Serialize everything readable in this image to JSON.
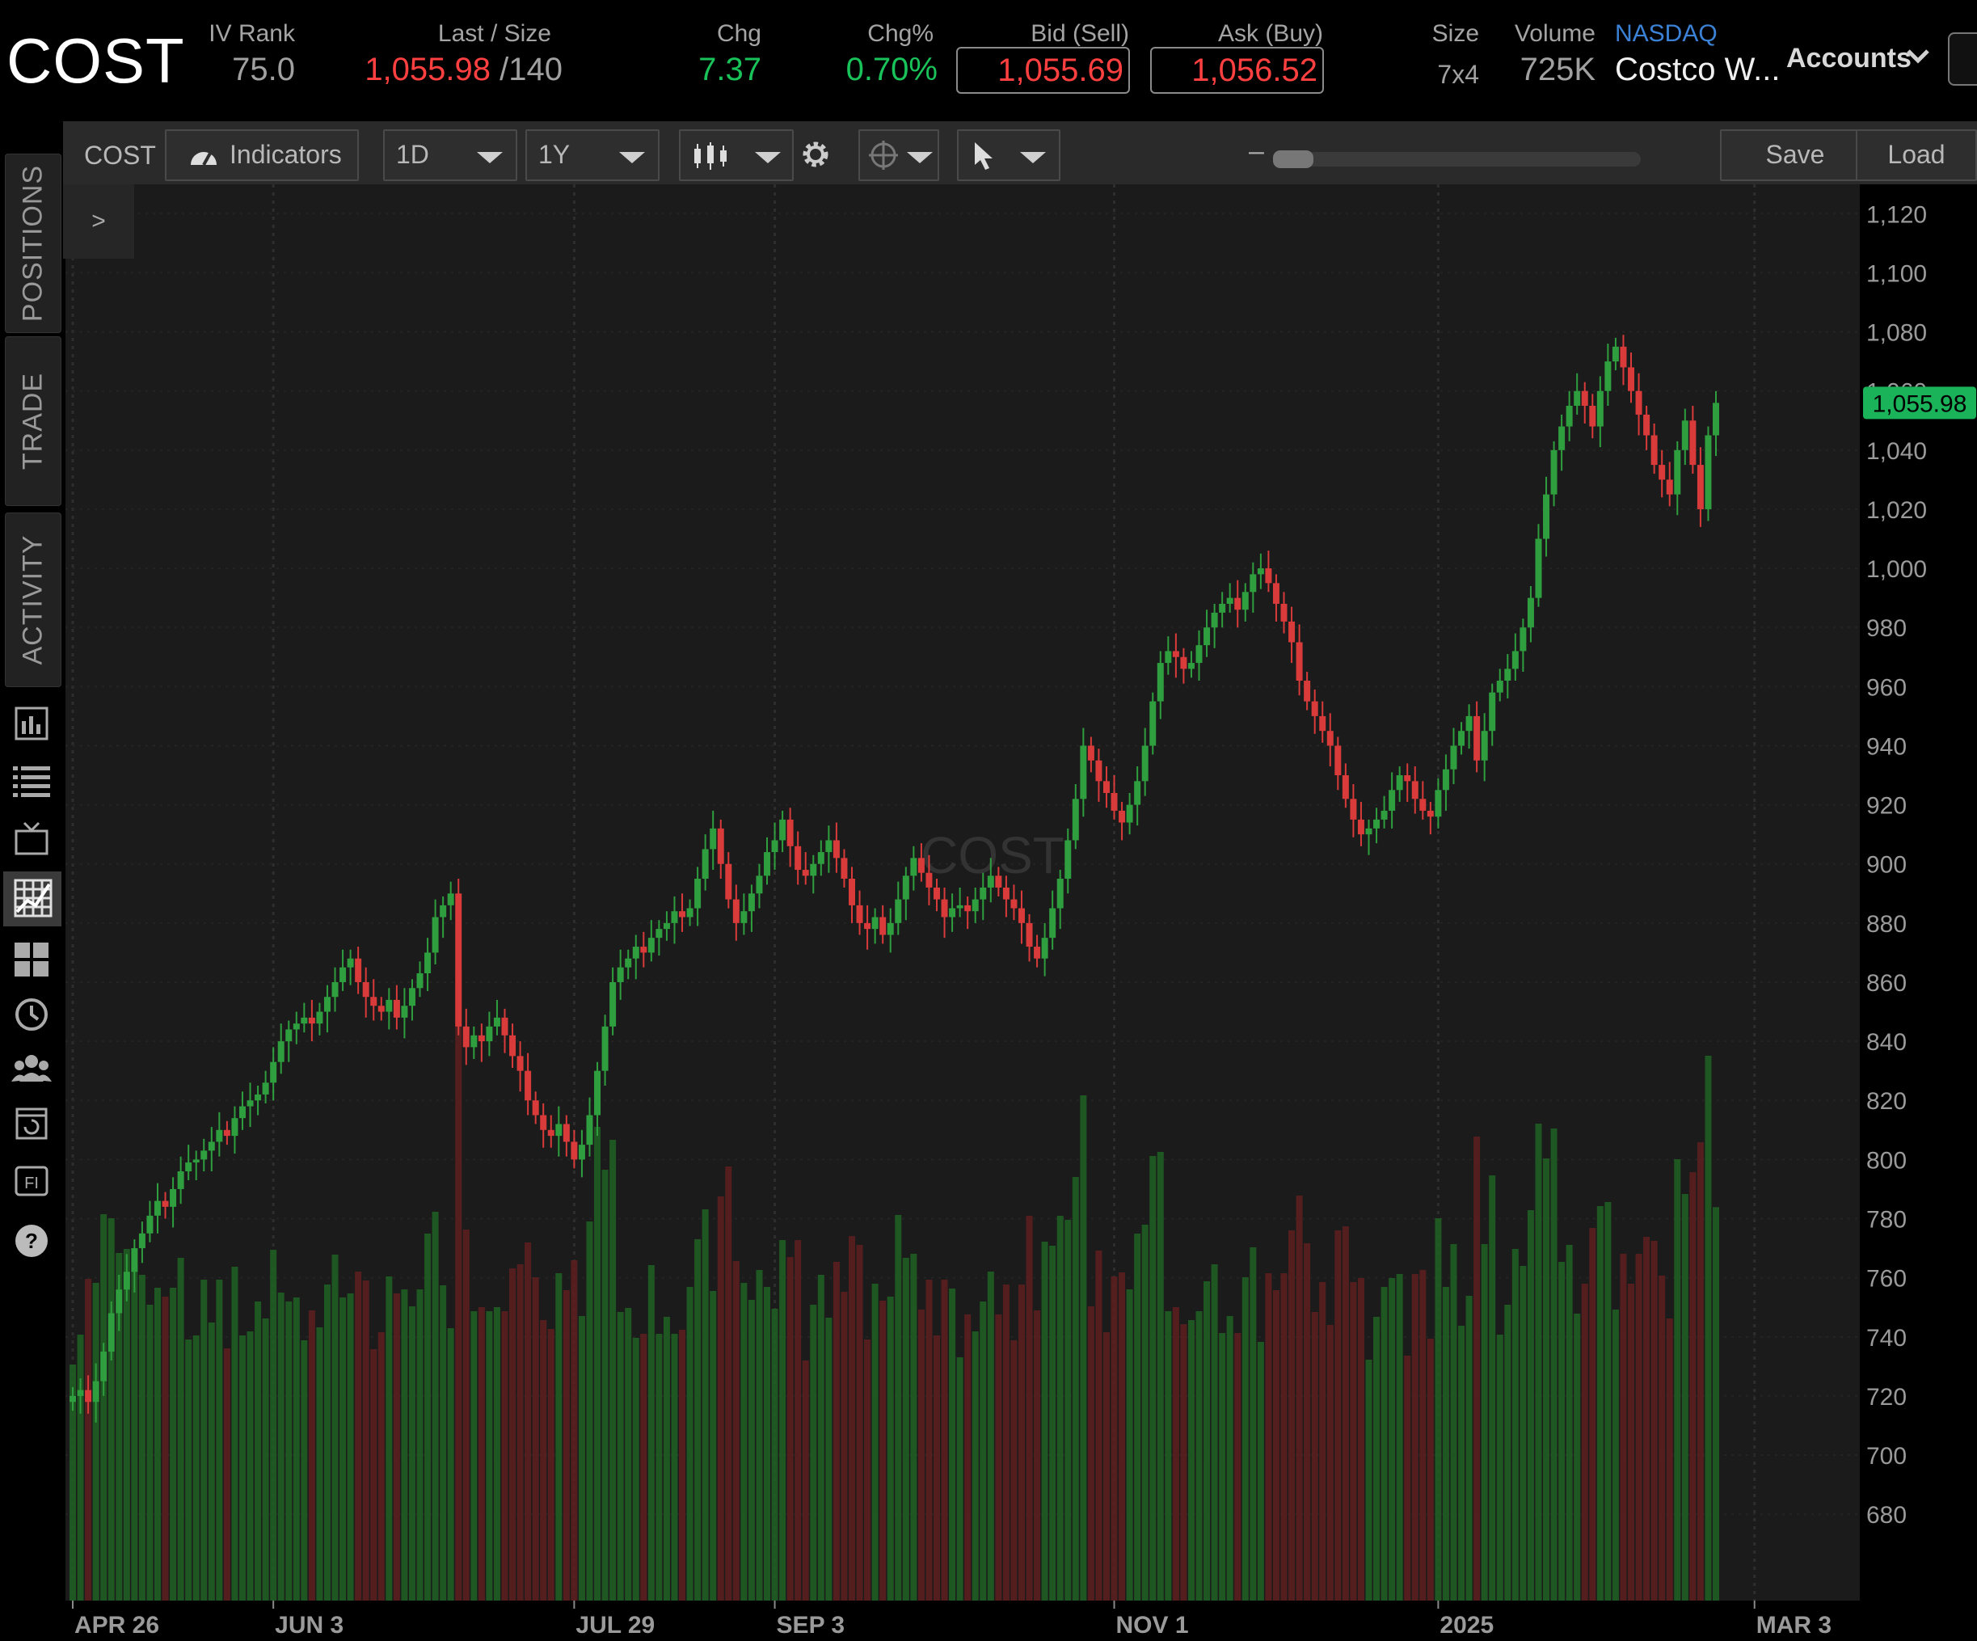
{
  "quote": {
    "symbol": "COST",
    "iv_rank_label": "IV Rank",
    "iv_rank": "75.0",
    "last_label": "Last / Size",
    "last": "1,055.98",
    "last_size": "/140",
    "chg_label": "Chg",
    "chg": "7.37",
    "chgpct_label": "Chg%",
    "chgpct": "0.70%",
    "bid_label": "Bid (Sell)",
    "bid": "1,055.69",
    "ask_label": "Ask (Buy)",
    "ask": "1,056.52",
    "size_label": "Size",
    "size": "7x4",
    "volume_label": "Volume",
    "volume": "725K",
    "exchange": "NASDAQ",
    "company": "Costco W...",
    "accounts": "Accounts"
  },
  "rail": {
    "tabs": [
      "POSITIONS",
      "TRADE",
      "ACTIVITY"
    ],
    "icons": [
      "chart-panel-icon",
      "watchlist-icon",
      "tv-icon",
      "grid-chart-icon",
      "dashboard-icon",
      "history-clock-icon",
      "community-icon",
      "refresh-calendar-icon",
      "fi-icon",
      "help-icon"
    ]
  },
  "toolbar": {
    "symbol": "COST",
    "indicators": "Indicators",
    "interval": "1D",
    "range": "1Y",
    "zoom_minus": "–",
    "zoom_plus": "+",
    "save": "Save",
    "load": "Load"
  },
  "chart": {
    "expand": ">",
    "watermark": "COST",
    "last_price_label": "1,055.98",
    "colors": {
      "up": "#2e9e3e",
      "down": "#d93a3a",
      "vol_up": "#1f5e22",
      "vol_down": "#5c1f1f",
      "last_bg": "#1bb35a"
    }
  },
  "chart_data": {
    "type": "candlestick",
    "ylim": [
      665,
      1125
    ],
    "y_ticks": [
      "1,120",
      "1,100",
      "1,080",
      "1,060",
      "1,040",
      "1,020",
      "1,000",
      "980",
      "960",
      "940",
      "920",
      "900",
      "880",
      "860",
      "840",
      "820",
      "800",
      "780",
      "760",
      "740",
      "720",
      "700",
      "680"
    ],
    "x_labels": [
      {
        "label": "APR 26",
        "bar": 0
      },
      {
        "label": "JUN 3",
        "bar": 26
      },
      {
        "label": "JUL 29",
        "bar": 65
      },
      {
        "label": "SEP 3",
        "bar": 91
      },
      {
        "label": "NOV 1",
        "bar": 135
      },
      {
        "label": "2025",
        "bar": 177
      },
      {
        "label": "MAR 3",
        "bar": 218
      }
    ],
    "last_price": 1055.98,
    "closes": [
      720,
      722,
      718,
      725,
      735,
      748,
      756,
      762,
      770,
      775,
      781,
      786,
      784,
      790,
      796,
      799,
      800,
      803,
      806,
      810,
      808,
      814,
      818,
      820,
      822,
      826,
      833,
      840,
      844,
      846,
      848,
      846,
      850,
      855,
      860,
      865,
      868,
      860,
      855,
      852,
      850,
      854,
      848,
      852,
      858,
      863,
      870,
      882,
      886,
      890,
      845,
      838,
      842,
      840,
      845,
      848,
      842,
      835,
      830,
      820,
      815,
      810,
      808,
      812,
      806,
      800,
      805,
      815,
      830,
      845,
      860,
      865,
      868,
      872,
      870,
      875,
      878,
      880,
      884,
      882,
      885,
      895,
      905,
      912,
      900,
      888,
      880,
      884,
      890,
      896,
      904,
      908,
      915,
      906,
      898,
      896,
      900,
      904,
      908,
      902,
      895,
      886,
      880,
      878,
      882,
      876,
      880,
      888,
      896,
      902,
      897,
      892,
      888,
      882,
      885,
      886,
      884,
      888,
      892,
      896,
      892,
      888,
      885,
      880,
      872,
      868,
      875,
      885,
      895,
      908,
      922,
      940,
      935,
      928,
      924,
      918,
      914,
      920,
      928,
      940,
      955,
      968,
      972,
      970,
      966,
      968,
      974,
      980,
      985,
      988,
      990,
      986,
      992,
      998,
      1000,
      995,
      988,
      982,
      975,
      962,
      955,
      950,
      945,
      940,
      930,
      922,
      915,
      910,
      912,
      915,
      918,
      925,
      930,
      928,
      922,
      918,
      916,
      925,
      932,
      940,
      945,
      950,
      935,
      945,
      958,
      962,
      966,
      972,
      980,
      990,
      1010,
      1025,
      1040,
      1048,
      1055,
      1060,
      1055,
      1048,
      1060,
      1070,
      1075,
      1068,
      1060,
      1052,
      1045,
      1035,
      1030,
      1025,
      1040,
      1050,
      1035,
      1020,
      1045,
      1055.98
    ]
  }
}
